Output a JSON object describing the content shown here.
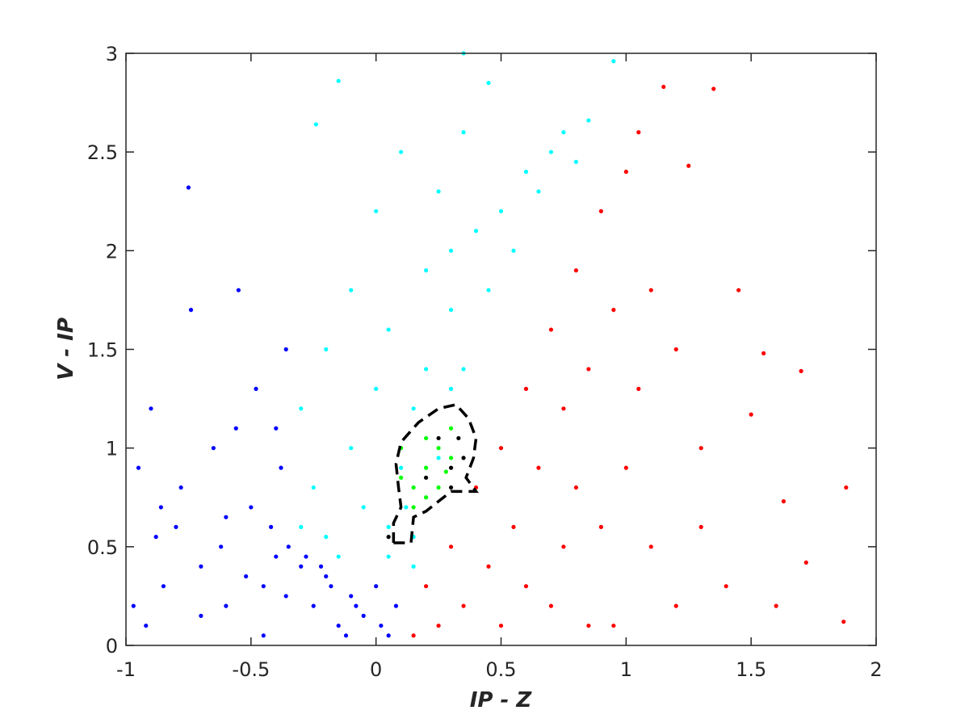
{
  "chart_data": {
    "type": "scatter",
    "xlabel": "IP - Z",
    "ylabel": "V - IP",
    "xlim": [
      -1,
      2
    ],
    "ylim": [
      0,
      3
    ],
    "xticks": [
      -1,
      -0.5,
      0,
      0.5,
      1,
      1.5,
      2
    ],
    "yticks": [
      0,
      0.5,
      1,
      1.5,
      2,
      2.5,
      3
    ],
    "series": [
      {
        "color": "#0000ff",
        "x": [
          -0.95,
          -0.9,
          -0.85,
          -0.8,
          -0.75,
          -0.7,
          -0.65,
          -0.6,
          -0.55,
          -0.5,
          -0.45,
          -0.4,
          -0.35,
          -0.3,
          -0.25,
          -0.2,
          -0.15,
          -0.1,
          -0.05,
          0,
          0.05,
          -0.92,
          -0.78,
          -0.62,
          -0.48,
          -0.38,
          -0.28,
          -0.18,
          -0.08,
          0.02,
          -0.88,
          -0.7,
          -0.52,
          -0.42,
          -0.36,
          -0.56,
          -0.74,
          -0.86,
          -0.97,
          -0.45,
          -0.36,
          -0.22,
          -0.12,
          0.08,
          -0.6,
          -0.4
        ],
        "y": [
          0.9,
          1.2,
          0.3,
          0.6,
          2.32,
          0.4,
          1.0,
          0.2,
          1.8,
          0.7,
          0.3,
          1.1,
          0.5,
          0.4,
          0.2,
          0.35,
          0.1,
          0.25,
          0.15,
          0.3,
          0.05,
          0.1,
          0.8,
          0.5,
          1.3,
          0.9,
          0.45,
          0.3,
          0.2,
          0.1,
          0.55,
          0.15,
          0.35,
          0.6,
          1.5,
          1.1,
          1.7,
          0.7,
          0.2,
          0.05,
          0.25,
          0.4,
          0.05,
          0.2,
          0.65,
          0.45
        ]
      },
      {
        "color": "#00ffff",
        "x": [
          -0.3,
          -0.3,
          -0.25,
          -0.2,
          -0.2,
          -0.15,
          -0.1,
          -0.1,
          -0.05,
          0,
          0,
          0.05,
          0.05,
          0.1,
          0.1,
          0.15,
          0.15,
          0.2,
          0.2,
          0.25,
          0.3,
          0.3,
          0.35,
          0.35,
          0.4,
          0.45,
          0.45,
          0.5,
          0.55,
          0.6,
          0.65,
          0.7,
          0.75,
          0.8,
          0.85,
          0.95,
          -0.24,
          0.15,
          0.12,
          0.25,
          -0.15,
          0.05,
          0.35,
          0.3
        ],
        "y": [
          0.6,
          1.2,
          0.8,
          1.5,
          0.55,
          2.86,
          1.0,
          1.8,
          0.7,
          1.3,
          2.2,
          0.6,
          1.6,
          0.9,
          2.5,
          1.2,
          0.55,
          1.9,
          1.4,
          2.3,
          1.7,
          2.0,
          1.4,
          2.6,
          2.1,
          1.8,
          2.85,
          2.2,
          2.0,
          2.4,
          2.3,
          2.5,
          2.6,
          2.45,
          2.66,
          2.96,
          2.64,
          0.4,
          0.7,
          0.95,
          0.45,
          0.45,
          3.0,
          1.3
        ]
      },
      {
        "color": "#ff0000",
        "x": [
          0.15,
          0.2,
          0.25,
          0.3,
          0.35,
          0.4,
          0.45,
          0.5,
          0.5,
          0.55,
          0.6,
          0.6,
          0.65,
          0.7,
          0.7,
          0.75,
          0.75,
          0.8,
          0.8,
          0.85,
          0.85,
          0.9,
          0.9,
          0.95,
          1.0,
          1.0,
          1.05,
          1.05,
          1.1,
          1.1,
          1.15,
          1.2,
          1.25,
          1.3,
          1.35,
          1.4,
          1.45,
          1.5,
          1.55,
          1.6,
          1.63,
          1.7,
          1.72,
          1.87,
          1.88,
          1.2,
          0.95,
          1.3
        ],
        "y": [
          0.05,
          0.3,
          0.1,
          0.5,
          0.2,
          0.8,
          0.4,
          1.0,
          0.1,
          0.6,
          1.3,
          0.3,
          0.9,
          1.6,
          0.2,
          1.2,
          0.5,
          1.9,
          0.8,
          1.4,
          0.1,
          2.2,
          0.6,
          1.7,
          2.4,
          0.9,
          2.6,
          1.3,
          1.8,
          0.5,
          2.83,
          1.5,
          2.43,
          1.0,
          2.82,
          0.3,
          1.8,
          1.17,
          1.48,
          0.2,
          0.73,
          1.39,
          0.42,
          0.12,
          0.8,
          0.2,
          0.1,
          0.6
        ]
      },
      {
        "color": "#00ff00",
        "x": [
          0.15,
          0.2,
          0.25,
          0.1,
          0.3,
          0.2,
          0.15,
          0.25,
          0.3,
          0.1,
          0.2,
          0.28
        ],
        "y": [
          0.8,
          0.9,
          1.0,
          0.85,
          0.95,
          1.05,
          0.7,
          0.8,
          1.1,
          1.0,
          0.75,
          0.88
        ]
      },
      {
        "color": "#000000",
        "x": [
          0.25,
          0.3,
          0.2,
          0.33,
          0.35,
          0.05,
          0.3
        ],
        "y": [
          1.05,
          0.9,
          0.85,
          1.05,
          0.95,
          0.55,
          0.8
        ]
      },
      {
        "color": "#000000",
        "style": "dashed",
        "x": [
          0.07,
          0.14,
          0.15,
          0.2,
          0.3,
          0.4,
          0.36,
          0.39,
          0.4,
          0.37,
          0.32,
          0.25,
          0.17,
          0.1,
          0.08,
          0.09,
          0.1,
          0.07,
          0.07
        ],
        "y": [
          0.52,
          0.52,
          0.65,
          0.68,
          0.78,
          0.78,
          0.85,
          0.95,
          1.05,
          1.15,
          1.22,
          1.2,
          1.13,
          1.03,
          0.92,
          0.8,
          0.7,
          0.62,
          0.52
        ]
      }
    ]
  }
}
